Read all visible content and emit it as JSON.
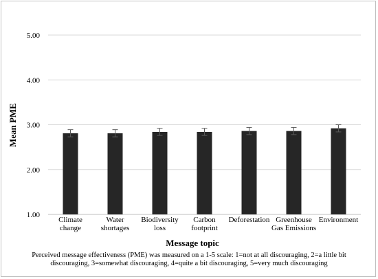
{
  "chart_data": {
    "type": "bar",
    "xlabel": "Message topic",
    "ylabel": "Mean PME",
    "ylim": [
      1.0,
      5.0
    ],
    "yticks": [
      "1.00",
      "2.00",
      "3.00",
      "4.00",
      "5.00"
    ],
    "categories": [
      [
        "Climate",
        "change"
      ],
      [
        "Water",
        "shortages"
      ],
      [
        "Biodiversity",
        "loss"
      ],
      [
        "Carbon",
        "footprint"
      ],
      [
        "Deforestation"
      ],
      [
        "Greenhouse",
        "Gas Emissions"
      ],
      [
        "Environment"
      ]
    ],
    "values": [
      2.81,
      2.81,
      2.84,
      2.84,
      2.86,
      2.86,
      2.92
    ],
    "errors": [
      0.08,
      0.08,
      0.08,
      0.08,
      0.08,
      0.08,
      0.08
    ],
    "grid": true,
    "colors": {
      "bar": "#262626",
      "grid": "#d9d9d9",
      "axis": "#bfbfbf",
      "error": "#595959"
    }
  },
  "caption": "Perceived message effectiveness (PME) was measured on a 1-5 scale: 1=not at all discouraging, 2=a little bit discouraging, 3=somewhat discouraging, 4=quite a bit discouraging, 5=very much discouraging"
}
